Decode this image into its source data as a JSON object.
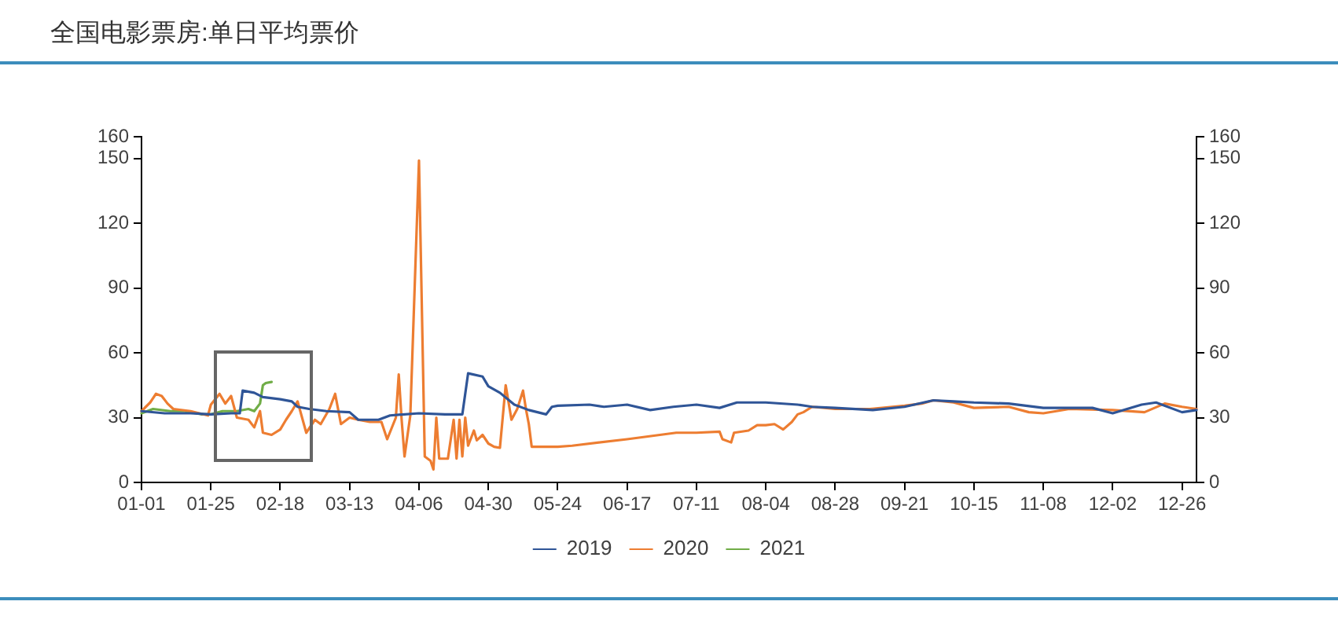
{
  "chart_data": {
    "type": "line",
    "title": "全国电影票房:单日平均票价",
    "series": [
      {
        "name": "2019",
        "color": "#2f5597",
        "x": [
          "--01-01",
          "--01-09",
          "--01-18",
          "--01-25",
          "--02-01",
          "--02-04",
          "--02-05",
          "--02-09",
          "--02-12",
          "--02-18",
          "--02-22",
          "--02-24",
          "--02-28",
          "--03-05",
          "--03-13",
          "--03-16",
          "--03-23",
          "--03-27",
          "--04-06",
          "--04-15",
          "--04-21",
          "--04-23",
          "--04-28",
          "--04-30",
          "--05-04",
          "--05-09",
          "--05-14",
          "--05-20",
          "--05-22",
          "--05-24",
          "--06-04",
          "--06-09",
          "--06-17",
          "--06-25",
          "--07-03",
          "--07-11",
          "--07-19",
          "--07-25",
          "--08-04",
          "--08-15",
          "--08-20",
          "--08-28",
          "--09-10",
          "--09-21",
          "--10-01",
          "--10-08",
          "--10-15",
          "--10-27",
          "--11-08",
          "--11-25",
          "--12-02",
          "--12-12",
          "--12-17",
          "--12-26",
          "--12-31"
        ],
        "values": [
          33,
          32,
          32,
          31.5,
          32,
          32,
          42.5,
          41.5,
          39.5,
          38.5,
          37.5,
          35,
          34,
          33,
          32.5,
          29,
          29,
          31,
          32,
          31.5,
          31.5,
          50.5,
          49,
          44.5,
          41.5,
          36,
          33.5,
          31.5,
          35,
          35.5,
          36,
          35,
          36,
          33.5,
          35,
          36,
          34.5,
          37,
          37,
          36,
          35,
          34.5,
          33.5,
          35,
          38,
          37.5,
          37,
          36.5,
          34.5,
          34.5,
          32,
          36,
          37,
          32.5,
          33.5
        ]
      },
      {
        "name": "2020",
        "color": "#ed7d31",
        "x": [
          "--01-01",
          "--01-04",
          "--01-06",
          "--01-08",
          "--01-10",
          "--01-12",
          "--01-18",
          "--01-24",
          "--01-25",
          "--01-28",
          "--01-30",
          "--02-01",
          "--02-03",
          "--02-07",
          "--02-09",
          "--02-11",
          "--02-12",
          "--02-15",
          "--02-18",
          "--02-20",
          "--02-22",
          "--02-24",
          "--02-27",
          "--03-01",
          "--03-03",
          "--03-06",
          "--03-08",
          "--03-10",
          "--03-13",
          "--03-16",
          "--03-20",
          "--03-24",
          "--03-26",
          "--03-29",
          "--03-30",
          "--03-31",
          "--04-01",
          "--04-03",
          "--04-06",
          "--04-08",
          "--04-10",
          "--04-11",
          "--04-12",
          "--04-13",
          "--04-16",
          "--04-18",
          "--04-19",
          "--04-20",
          "--04-21",
          "--04-22",
          "--04-23",
          "--04-25",
          "--04-26",
          "--04-28",
          "--04-30",
          "--05-02",
          "--05-04",
          "--05-06",
          "--05-08",
          "--05-10",
          "--05-12",
          "--05-13",
          "--05-14",
          "--05-15",
          "--05-24",
          "--05-29",
          "--06-17",
          "--07-04",
          "--07-11",
          "--07-19",
          "--07-20",
          "--07-23",
          "--07-24",
          "--07-29",
          "--08-01",
          "--08-04",
          "--08-07",
          "--08-10",
          "--08-13",
          "--08-15",
          "--08-17",
          "--08-20",
          "--08-28",
          "--09-09",
          "--09-21",
          "--09-27",
          "--10-01",
          "--10-08",
          "--10-15",
          "--10-27",
          "--11-03",
          "--11-08",
          "--11-17",
          "--12-02",
          "--12-13",
          "--12-20",
          "--12-26",
          "--12-31"
        ],
        "values": [
          33,
          37,
          41,
          40,
          36.5,
          34,
          33,
          31,
          36,
          41,
          36.5,
          40,
          30,
          29,
          25.5,
          33,
          23,
          22,
          24.5,
          29,
          33,
          37.5,
          23,
          29,
          27,
          34,
          41,
          27,
          30,
          29,
          28,
          28,
          20,
          30,
          50,
          29,
          12,
          31,
          149,
          12,
          10,
          6,
          30,
          11,
          11,
          29,
          11,
          29,
          12,
          30,
          17,
          24,
          19.5,
          22,
          18,
          16.5,
          16,
          45,
          29,
          34,
          42.5,
          34,
          27,
          16.5,
          16.5,
          17,
          20,
          23,
          23,
          23.5,
          20,
          18.5,
          23,
          24,
          26.5,
          26.5,
          27,
          24.5,
          28,
          31.5,
          32.5,
          35,
          34,
          34,
          35.5,
          36.5,
          38,
          37,
          34.5,
          35,
          32.5,
          32,
          34,
          33.5,
          32.5,
          36.5,
          35,
          34
        ]
      },
      {
        "name": "2021",
        "color": "#70ad47",
        "x": [
          "--01-01",
          "--01-05",
          "--01-11",
          "--01-16",
          "--01-22",
          "--01-25",
          "--01-29",
          "--02-03",
          "--02-07",
          "--02-09",
          "--02-11",
          "--02-12",
          "--02-13",
          "--02-15"
        ],
        "values": [
          32,
          34,
          33,
          33,
          31.5,
          31.5,
          33,
          33,
          34,
          33,
          36.5,
          45,
          46,
          46.5
        ]
      }
    ],
    "xlim": [
      "--01-01",
      "--12-31"
    ],
    "xticks": [
      {
        "value": "--01-01",
        "label": "01-01"
      },
      {
        "value": "--01-25",
        "label": "01-25"
      },
      {
        "value": "--02-18",
        "label": "02-18"
      },
      {
        "value": "--03-13",
        "label": "03-13"
      },
      {
        "value": "--04-06",
        "label": "04-06"
      },
      {
        "value": "--04-30",
        "label": "04-30"
      },
      {
        "value": "--05-24",
        "label": "05-24"
      },
      {
        "value": "--06-17",
        "label": "06-17"
      },
      {
        "value": "--07-11",
        "label": "07-11"
      },
      {
        "value": "--08-04",
        "label": "08-04"
      },
      {
        "value": "--08-28",
        "label": "08-28"
      },
      {
        "value": "--09-21",
        "label": "09-21"
      },
      {
        "value": "--10-15",
        "label": "10-15"
      },
      {
        "value": "--11-08",
        "label": "11-08"
      },
      {
        "value": "--12-02",
        "label": "12-02"
      },
      {
        "value": "--12-26",
        "label": "12-26"
      }
    ],
    "ylim": [
      0,
      160
    ],
    "yticks": [
      0,
      30,
      60,
      90,
      120,
      150,
      160
    ],
    "y2lim": [
      0,
      160
    ],
    "y2ticks": [
      0,
      30,
      60,
      90,
      120,
      150,
      160
    ],
    "grid": false,
    "legend": "bottom",
    "marker": "none",
    "line_style": "solid"
  }
}
